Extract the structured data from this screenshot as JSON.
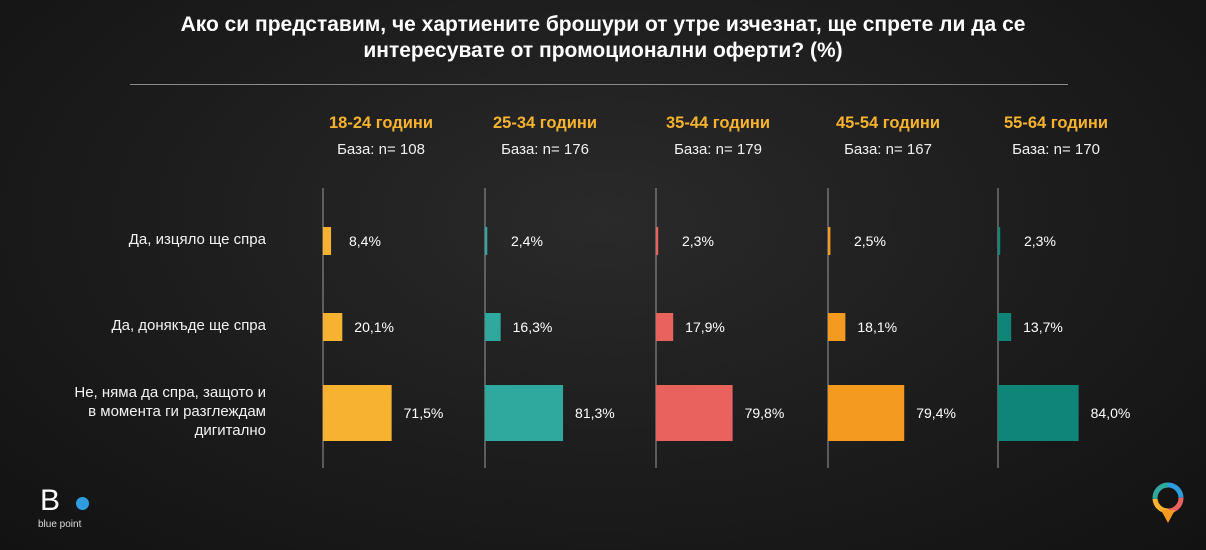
{
  "title_lines": [
    "Ако си представим, че хартиените брошури от утре изчезнат, ще спрете ли да се",
    "интересувате от промоционални оферти? (%)"
  ],
  "brand": {
    "name": "blue point"
  },
  "colors": {
    "orange": "#F7B22F",
    "teal": "#2FA89E",
    "coral": "#E8625E",
    "dark_orange": "#F39A1F",
    "dark_teal": "#0E8577"
  },
  "chart_data": {
    "type": "bar",
    "orientation": "horizontal",
    "categories": [
      "Да, изцяло ще спра",
      "Да, донякъде ще спра",
      "Не, няма да спра, защото и в момента ги разглеждам дигитално"
    ],
    "category_label_lines": [
      [
        "Да, изцяло ще спра"
      ],
      [
        "Да, донякъде ще спра"
      ],
      [
        "Не, няма да спра, защото и",
        "в момента ги разглеждам",
        "дигитално"
      ]
    ],
    "groups": [
      {
        "name": "18-24 години",
        "base": "База: n= 108",
        "color": "#F7B22F",
        "values": [
          8.4,
          20.1,
          71.5
        ],
        "labels": [
          "8,4%",
          "20,1%",
          "71,5%"
        ]
      },
      {
        "name": "25-34 години",
        "base": "База: n= 176",
        "color": "#2FA89E",
        "values": [
          2.4,
          16.3,
          81.3
        ],
        "labels": [
          "2,4%",
          "16,3%",
          "81,3%"
        ]
      },
      {
        "name": "35-44 години",
        "base": "База: n= 179",
        "color": "#E8625E",
        "values": [
          2.3,
          17.9,
          79.8
        ],
        "labels": [
          "2,3%",
          "17,9%",
          "79,8%"
        ]
      },
      {
        "name": "45-54 години",
        "base": "База: n= 167",
        "color": "#F39A1F",
        "values": [
          2.5,
          18.1,
          79.4
        ],
        "labels": [
          "2,5%",
          "18,1%",
          "79,4%"
        ]
      },
      {
        "name": "55-64 години",
        "base": "База: n= 170",
        "color": "#0E8577",
        "values": [
          2.3,
          13.7,
          84.0
        ],
        "labels": [
          "2,3%",
          "13,7%",
          "84,0%"
        ]
      }
    ],
    "xlim": [
      0,
      100
    ],
    "grid": false,
    "legend": "none"
  }
}
